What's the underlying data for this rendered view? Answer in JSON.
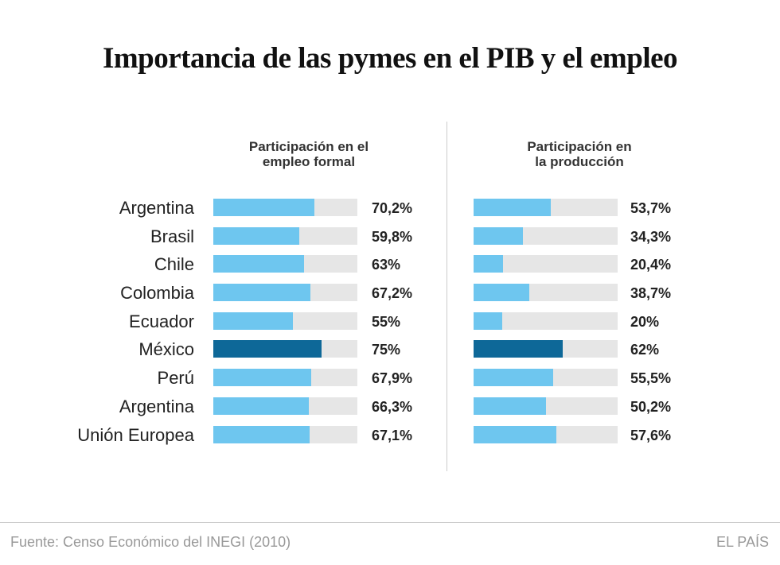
{
  "chart_data": {
    "type": "bar",
    "title": "Importancia de las pymes en el PIB y el empleo",
    "categories": [
      "Argentina",
      "Brasil",
      "Chile",
      "Colombia",
      "Ecuador",
      "México",
      "Perú",
      "Argentina",
      "Unión Europea"
    ],
    "highlight": "México",
    "xlim": [
      0,
      100
    ],
    "series": [
      {
        "name": "Participación en el\nempleo formal",
        "values": [
          70.2,
          59.8,
          63,
          67.2,
          55,
          75,
          67.9,
          66.3,
          67.1
        ],
        "labels": [
          "70,2%",
          "59,8%",
          "63%",
          "67,2%",
          "55%",
          "75%",
          "67,9%",
          "66,3%",
          "67,1%"
        ]
      },
      {
        "name": "Participación en\nla producción",
        "values": [
          53.7,
          34.3,
          20.4,
          38.7,
          20,
          62,
          55.5,
          50.2,
          57.6
        ],
        "labels": [
          "53,7%",
          "34,3%",
          "20,4%",
          "38,7%",
          "20%",
          "62%",
          "55,5%",
          "50,2%",
          "57,6%"
        ]
      }
    ],
    "colors": {
      "bar": "#6ec6ef",
      "highlight": "#0e6898",
      "track": "#e6e6e6"
    }
  },
  "footer": {
    "source": "Fuente: Censo Económico del INEGI (2010)",
    "brand": "EL PAÍS"
  }
}
